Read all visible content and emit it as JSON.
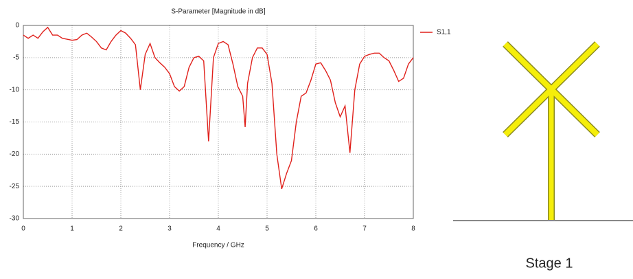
{
  "chart_data": {
    "type": "line",
    "title": "S-Parameter [Magnitude in dB]",
    "x_label": "Frequency / GHz",
    "x": [
      0,
      0.1,
      0.2,
      0.3,
      0.4,
      0.5,
      0.6,
      0.7,
      0.8,
      1.0,
      1.1,
      1.2,
      1.3,
      1.4,
      1.5,
      1.6,
      1.7,
      1.8,
      1.9,
      2.0,
      2.1,
      2.2,
      2.3,
      2.4,
      2.5,
      2.6,
      2.7,
      2.8,
      2.9,
      3.0,
      3.1,
      3.2,
      3.3,
      3.4,
      3.5,
      3.6,
      3.7,
      3.8,
      3.9,
      4.0,
      4.1,
      4.2,
      4.3,
      4.4,
      4.5,
      4.55,
      4.6,
      4.7,
      4.8,
      4.9,
      5.0,
      5.1,
      5.2,
      5.3,
      5.4,
      5.5,
      5.6,
      5.7,
      5.8,
      5.9,
      6.0,
      6.1,
      6.2,
      6.3,
      6.4,
      6.5,
      6.6,
      6.7,
      6.8,
      6.9,
      7.0,
      7.1,
      7.2,
      7.3,
      7.4,
      7.5,
      7.6,
      7.7,
      7.8,
      7.9,
      8.0
    ],
    "series": [
      {
        "name": "S1,1",
        "color": "#e0201b",
        "values": [
          -1.5,
          -2,
          -1.5,
          -2,
          -1,
          -0.3,
          -1.5,
          -1.5,
          -2,
          -2.3,
          -2.2,
          -1.5,
          -1.2,
          -1.8,
          -2.5,
          -3.5,
          -3.8,
          -2.5,
          -1.5,
          -0.8,
          -1.2,
          -2,
          -3,
          -10,
          -4.5,
          -2.8,
          -5,
          -5.8,
          -6.5,
          -7.5,
          -9.5,
          -10.2,
          -9.5,
          -6.5,
          -5,
          -4.8,
          -5.5,
          -18,
          -5,
          -2.8,
          -2.5,
          -3,
          -6,
          -9.5,
          -11,
          -15.8,
          -9,
          -5,
          -3.5,
          -3.5,
          -4.5,
          -9,
          -20,
          -25.4,
          -23,
          -21,
          -15,
          -11,
          -10.5,
          -8.5,
          -6,
          -5.8,
          -7,
          -8.5,
          -12,
          -14.2,
          -12.5,
          -19.8,
          -10,
          -6,
          -4.8,
          -4.5,
          -4.3,
          -4.3,
          -5,
          -5.5,
          -7,
          -8.7,
          -8.2,
          -6,
          -5
        ]
      }
    ],
    "xlim": [
      0,
      8
    ],
    "xticks": [
      0,
      1,
      2,
      3,
      4,
      5,
      6,
      7,
      8
    ],
    "ylim": [
      -30,
      0
    ],
    "yticks": [
      -30,
      -25,
      -20,
      -15,
      -10,
      -5,
      0
    ],
    "grid": true,
    "legend": "right"
  },
  "caption": "Stage 1"
}
